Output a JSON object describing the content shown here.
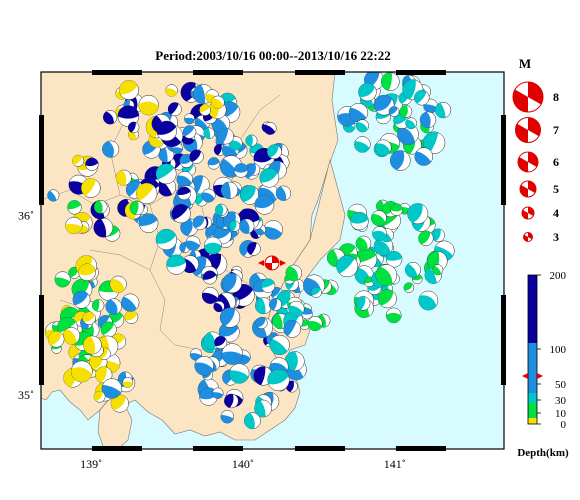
{
  "title": "Period:2003/10/16 00:00--2013/10/16 22:22",
  "axes": {
    "lon_ticks": [
      {
        "value": 139,
        "label": "139˚"
      },
      {
        "value": 140,
        "label": "140˚"
      },
      {
        "value": 141,
        "label": "141˚"
      }
    ],
    "lat_ticks": [
      {
        "value": 36,
        "label": "36˚"
      },
      {
        "value": 35,
        "label": "35˚"
      }
    ],
    "lon_range": [
      138.67,
      141.72
    ],
    "lat_range": [
      34.7,
      36.8
    ]
  },
  "magnitude_legend": {
    "title": "M",
    "entries": [
      "8",
      "7",
      "6",
      "5",
      "4",
      "3"
    ]
  },
  "depth_scale": {
    "unit_label": "Depth(km)",
    "ticks": [
      "200",
      "100",
      "50",
      "30",
      "10",
      "0"
    ],
    "colors": {
      "shallow": "#f5e000",
      "mid_shallow": "#00e040",
      "mid": "#00c8c8",
      "deep_mid": "#1e8fe0",
      "deep": "#0a00a0"
    },
    "marker_depth": 60
  },
  "colors": {
    "land": "#fbe5c3",
    "sea": "#d8fbff",
    "event": "#e00000",
    "frame": "#000000"
  },
  "event_marker": {
    "lon": 140.2,
    "lat": 35.7
  }
}
